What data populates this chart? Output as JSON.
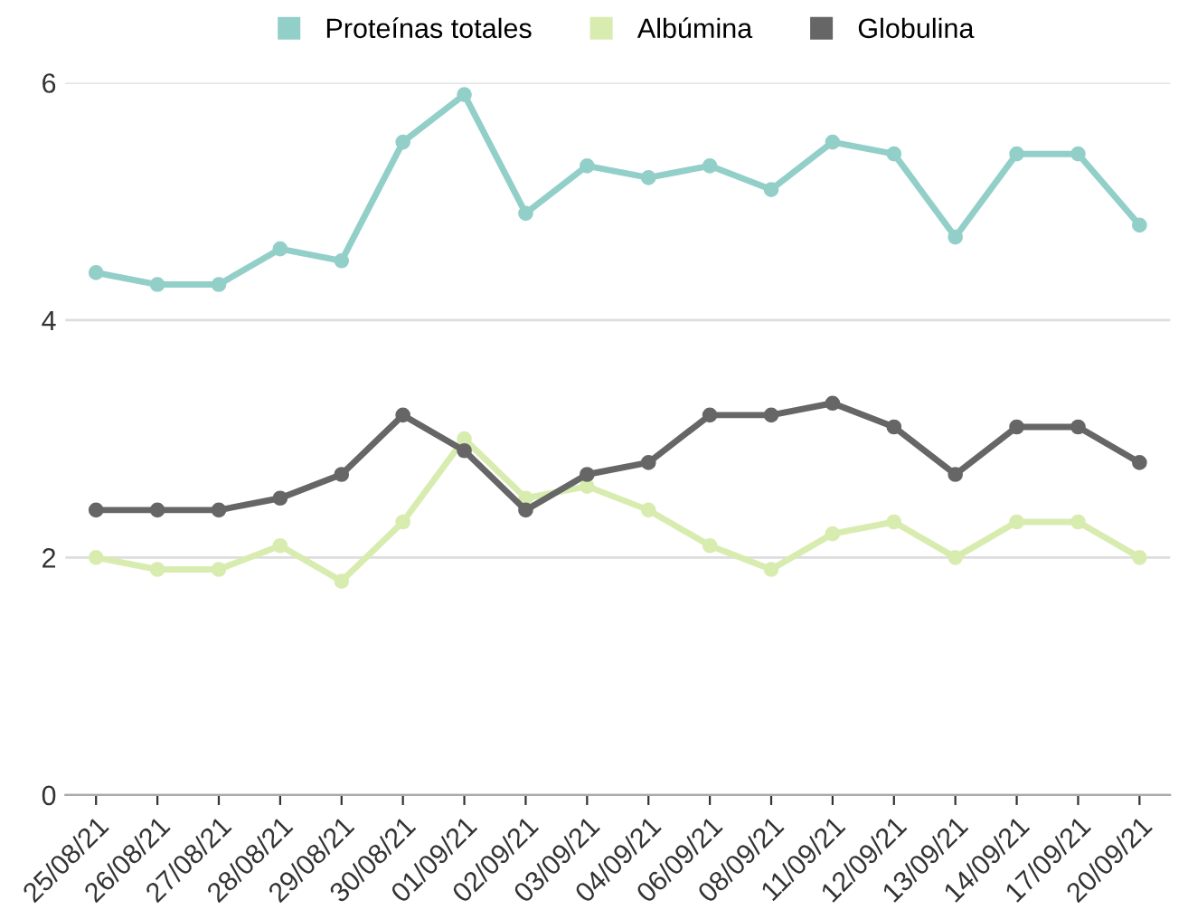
{
  "chart_data": {
    "type": "line",
    "categories": [
      "25/08/21",
      "26/08/21",
      "27/08/21",
      "28/08/21",
      "29/08/21",
      "30/08/21",
      "01/09/21",
      "02/09/21",
      "03/09/21",
      "04/09/21",
      "06/09/21",
      "08/09/21",
      "11/09/21",
      "12/09/21",
      "13/09/21",
      "14/09/21",
      "17/09/21",
      "20/09/21"
    ],
    "series": [
      {
        "name": "Proteínas totales",
        "color": "#93cfc9",
        "values": [
          4.4,
          4.3,
          4.3,
          4.6,
          4.5,
          5.5,
          5.9,
          4.9,
          5.3,
          5.2,
          5.3,
          5.1,
          5.5,
          5.4,
          4.7,
          5.4,
          5.4,
          4.8
        ]
      },
      {
        "name": "Albúmina",
        "color": "#d9ecb0",
        "values": [
          2.0,
          1.9,
          1.9,
          2.1,
          1.8,
          2.3,
          3.0,
          2.5,
          2.6,
          2.4,
          2.1,
          1.9,
          2.2,
          2.3,
          2.0,
          2.3,
          2.3,
          2.0
        ]
      },
      {
        "name": "Globulina",
        "color": "#666666",
        "values": [
          2.4,
          2.4,
          2.4,
          2.5,
          2.7,
          3.2,
          2.9,
          2.4,
          2.7,
          2.8,
          3.2,
          3.2,
          3.3,
          3.1,
          2.7,
          3.1,
          3.1,
          2.8
        ]
      }
    ],
    "ylim": [
      0,
      6
    ],
    "yticks": [
      0,
      2,
      4,
      6
    ],
    "grid": "y",
    "legend": "top",
    "marker": "circle",
    "line_style": "solid"
  }
}
